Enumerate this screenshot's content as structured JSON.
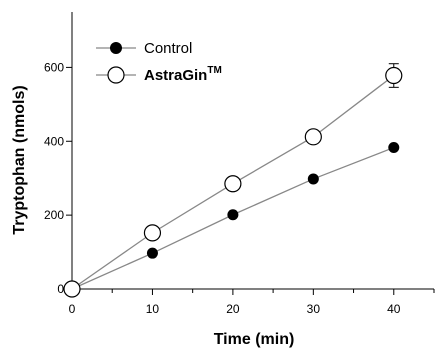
{
  "chart_data": {
    "type": "scatter",
    "xlabel": "Time (min)",
    "ylabel": "Tryptophan (nmols)",
    "xlim": [
      0,
      45
    ],
    "ylim": [
      0,
      750
    ],
    "xticks": [
      0,
      10,
      20,
      30,
      40
    ],
    "yticks": [
      0,
      200,
      400,
      600
    ],
    "grid": false,
    "legend_position": "top-left",
    "series": [
      {
        "name": "Control",
        "marker": "filled-circle",
        "color": "#000000",
        "line_color": "#888888",
        "x": [
          0,
          10,
          20,
          30,
          40
        ],
        "y": [
          0,
          97,
          201,
          298,
          383
        ]
      },
      {
        "name": "AstraGin",
        "name_superscript": "TM",
        "marker": "open-circle",
        "color": "#000000",
        "line_color": "#888888",
        "x": [
          0,
          10,
          20,
          30,
          40
        ],
        "y": [
          0,
          152,
          285,
          412,
          578
        ],
        "error": [
          0,
          0,
          0,
          0,
          32
        ]
      }
    ]
  }
}
